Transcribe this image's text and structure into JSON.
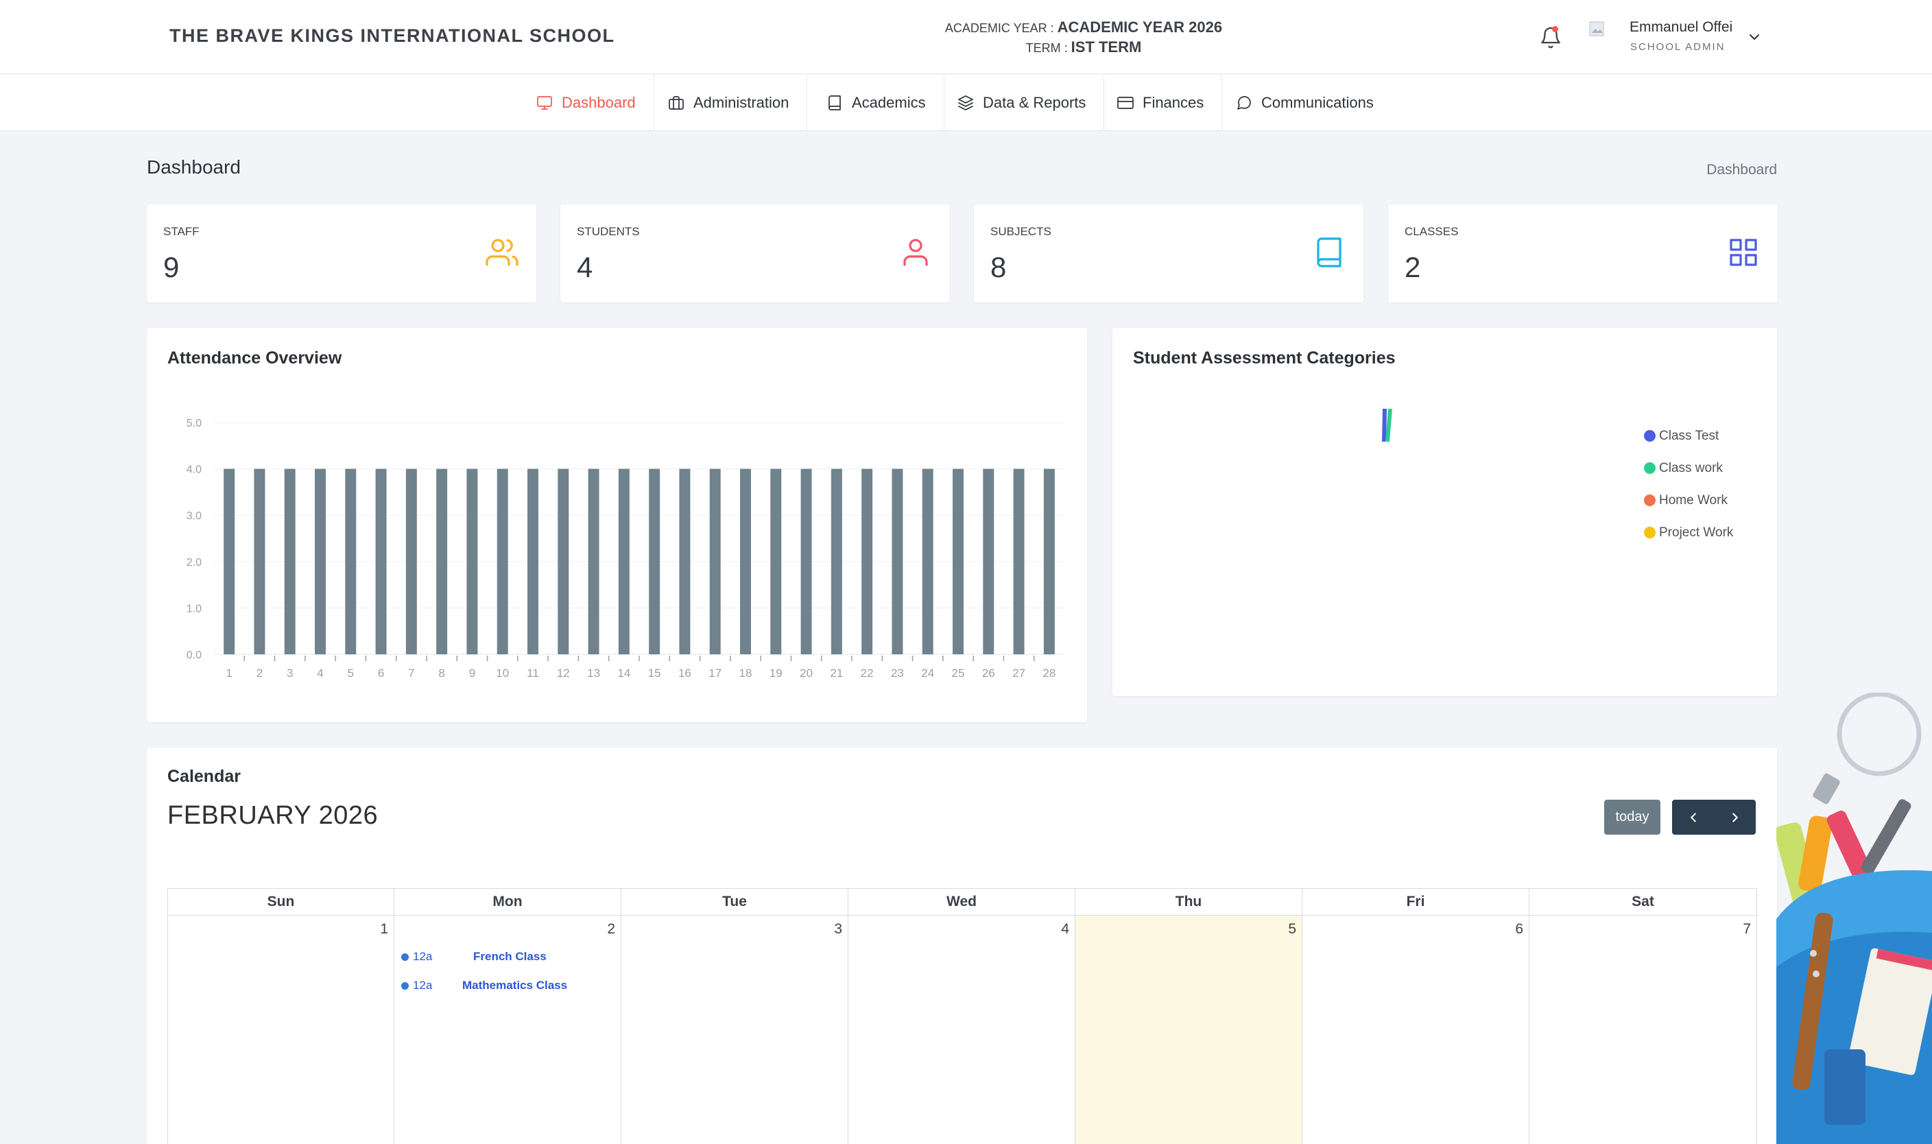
{
  "header": {
    "school_name": "THE BRAVE KINGS INTERNATIONAL SCHOOL",
    "academic_year_label": "ACADEMIC YEAR : ",
    "academic_year_value": "ACADEMIC YEAR 2026",
    "term_label": "TERM : ",
    "term_value": "IST TERM",
    "user_name": "Emmanuel Offei",
    "user_role": "SCHOOL ADMIN",
    "icons": [
      "bell-icon",
      "avatar",
      "chevron-down-icon"
    ]
  },
  "nav": {
    "items": [
      {
        "label": "Dashboard",
        "icon": "monitor-icon",
        "active": true
      },
      {
        "label": "Administration",
        "icon": "briefcase-icon",
        "active": false
      },
      {
        "label": "Academics",
        "icon": "book-icon",
        "active": false
      },
      {
        "label": "Data & Reports",
        "icon": "layers-icon",
        "active": false
      },
      {
        "label": "Finances",
        "icon": "credit-card-icon",
        "active": false
      },
      {
        "label": "Communications",
        "icon": "message-icon",
        "active": false
      }
    ],
    "active_color": "#ef5a4d"
  },
  "page": {
    "title": "Dashboard",
    "breadcrumb": "Dashboard"
  },
  "stats": [
    {
      "label": "STAFF",
      "value": "9",
      "icon": "users-icon",
      "color": "#f5b324"
    },
    {
      "label": "STUDENTS",
      "value": "4",
      "icon": "user-icon",
      "color": "#f0566e"
    },
    {
      "label": "SUBJECTS",
      "value": "8",
      "icon": "book-icon",
      "color": "#19b2e8"
    },
    {
      "label": "CLASSES",
      "value": "2",
      "icon": "grid-icon",
      "color": "#4b5de0"
    }
  ],
  "attendance": {
    "title": "Attendance Overview"
  },
  "assessment": {
    "title": "Student Assessment Categories",
    "legend": [
      {
        "label": "Class Test",
        "color": "#4b5de0"
      },
      {
        "label": "Class work",
        "color": "#2ecc8f"
      },
      {
        "label": "Home Work",
        "color": "#f0714b"
      },
      {
        "label": "Project Work",
        "color": "#f5c20f"
      }
    ]
  },
  "chart_data": {
    "type": "bar",
    "categories": [
      "1",
      "2",
      "3",
      "4",
      "5",
      "6",
      "7",
      "8",
      "9",
      "10",
      "11",
      "12",
      "13",
      "14",
      "15",
      "16",
      "17",
      "18",
      "19",
      "20",
      "21",
      "22",
      "23",
      "24",
      "25",
      "26",
      "27",
      "28"
    ],
    "values": [
      4,
      4,
      4,
      4,
      4,
      4,
      4,
      4,
      4,
      4,
      4,
      4,
      4,
      4,
      4,
      4,
      4,
      4,
      4,
      4,
      4,
      4,
      4,
      4,
      4,
      4,
      4,
      4
    ],
    "title": "Attendance Overview",
    "xlabel": "",
    "ylabel": "",
    "ylim": [
      0,
      5
    ],
    "yticks": [
      "0.0",
      "1.0",
      "2.0",
      "3.0",
      "4.0",
      "5.0"
    ],
    "grid": true,
    "bar_color": "#6f828d"
  },
  "calendar": {
    "title": "Calendar",
    "month": "FEBRUARY 2026",
    "today_label": "today",
    "weekdays": [
      "Sun",
      "Mon",
      "Tue",
      "Wed",
      "Thu",
      "Fri",
      "Sat"
    ],
    "days": [
      "1",
      "2",
      "3",
      "4",
      "5",
      "6",
      "7"
    ],
    "today_index": 4,
    "events": [
      {
        "day_index": 1,
        "time": "12a",
        "title": "French Class"
      },
      {
        "day_index": 1,
        "time": "12a",
        "title": "Mathematics Class"
      }
    ]
  }
}
